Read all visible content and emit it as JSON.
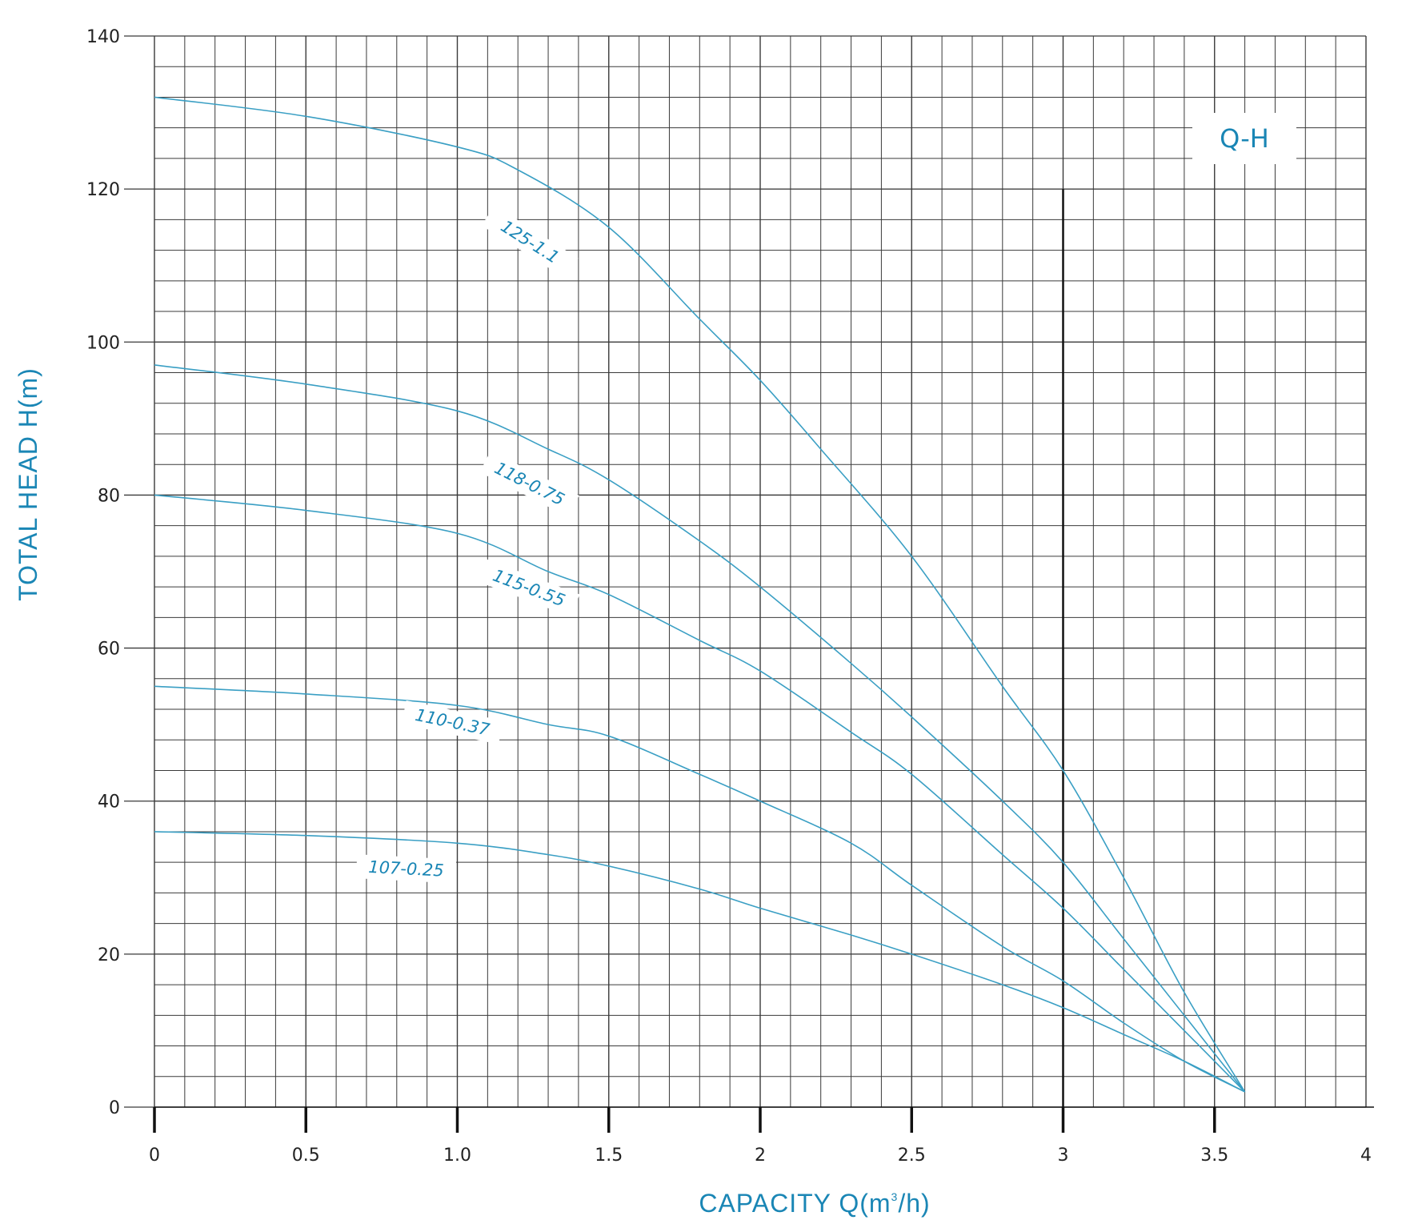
{
  "chart_data": {
    "type": "line",
    "title": "",
    "legend": "Q-H",
    "xlabel": "CAPACITY Q(m",
    "xlabel_sup": "3",
    "xlabel_tail": "/h)",
    "ylabel": "TOTAL HEAD H(m)",
    "xlim": [
      0,
      4
    ],
    "ylim": [
      0,
      140
    ],
    "x_ticks": [
      "0",
      "0.5",
      "1.0",
      "1.5",
      "2",
      "2.5",
      "3",
      "3.5",
      "4"
    ],
    "y_ticks": [
      "0",
      "20",
      "40",
      "60",
      "80",
      "100",
      "120",
      "140"
    ],
    "grid": true,
    "reference_line_x": 3,
    "series": [
      {
        "name": "125-1.1",
        "points": [
          [
            0,
            132
          ],
          [
            0.5,
            129.5
          ],
          [
            1.0,
            125.5
          ],
          [
            1.2,
            122.5
          ],
          [
            1.5,
            115
          ],
          [
            1.8,
            103
          ],
          [
            2.0,
            95
          ],
          [
            2.2,
            86
          ],
          [
            2.5,
            72
          ],
          [
            2.8,
            55
          ],
          [
            3.0,
            44
          ],
          [
            3.2,
            30
          ],
          [
            3.4,
            15
          ],
          [
            3.6,
            2
          ]
        ]
      },
      {
        "name": "118-0.75",
        "points": [
          [
            0,
            97
          ],
          [
            0.5,
            94.5
          ],
          [
            1.0,
            91
          ],
          [
            1.3,
            86
          ],
          [
            1.5,
            82
          ],
          [
            1.8,
            74
          ],
          [
            2.0,
            68
          ],
          [
            2.3,
            58
          ],
          [
            2.5,
            51
          ],
          [
            2.8,
            40
          ],
          [
            3.0,
            32
          ],
          [
            3.2,
            22
          ],
          [
            3.4,
            12
          ],
          [
            3.6,
            2
          ]
        ]
      },
      {
        "name": "115-0.55",
        "points": [
          [
            0,
            80
          ],
          [
            0.5,
            78
          ],
          [
            1.0,
            75
          ],
          [
            1.3,
            70
          ],
          [
            1.5,
            67
          ],
          [
            1.8,
            61
          ],
          [
            2.0,
            57
          ],
          [
            2.3,
            49
          ],
          [
            2.5,
            43.5
          ],
          [
            2.8,
            33
          ],
          [
            3.0,
            26
          ],
          [
            3.2,
            18
          ],
          [
            3.4,
            10
          ],
          [
            3.6,
            2
          ]
        ]
      },
      {
        "name": "110-0.37",
        "points": [
          [
            0,
            55
          ],
          [
            0.5,
            54
          ],
          [
            1.0,
            52.5
          ],
          [
            1.3,
            50
          ],
          [
            1.5,
            48.5
          ],
          [
            1.8,
            43.5
          ],
          [
            2.0,
            40
          ],
          [
            2.3,
            34.5
          ],
          [
            2.5,
            29
          ],
          [
            2.8,
            21
          ],
          [
            3.0,
            16.5
          ],
          [
            3.2,
            11
          ],
          [
            3.4,
            6
          ],
          [
            3.6,
            2
          ]
        ]
      },
      {
        "name": "107-0.25",
        "points": [
          [
            0,
            36
          ],
          [
            0.5,
            35.5
          ],
          [
            1.0,
            34.5
          ],
          [
            1.3,
            33
          ],
          [
            1.5,
            31.5
          ],
          [
            1.8,
            28.5
          ],
          [
            2.0,
            26
          ],
          [
            2.3,
            22.5
          ],
          [
            2.5,
            20
          ],
          [
            2.8,
            16
          ],
          [
            3.0,
            13
          ],
          [
            3.2,
            9.5
          ],
          [
            3.4,
            6
          ],
          [
            3.6,
            2
          ]
        ]
      }
    ],
    "colors": {
      "curve": "#3a9fc4",
      "label": "#1a86b5",
      "grid": "#3a3a3a",
      "ref_line": "#111111"
    }
  }
}
